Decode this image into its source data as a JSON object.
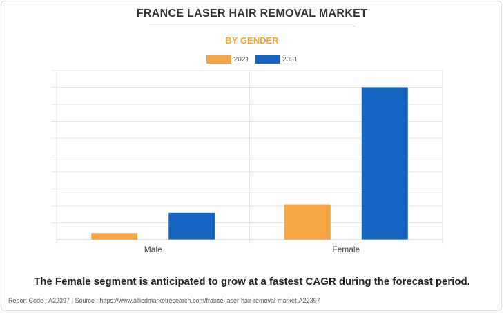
{
  "title": "FRANCE LASER HAIR REMOVAL MARKET",
  "subtitle": "BY GENDER",
  "caption": "The Female segment is anticipated to grow at a fastest CAGR during the forecast period.",
  "footer": {
    "report_code": "Report Code : A22397",
    "separator": "|",
    "source": "Source : https://www.alliedmarketresearch.com/france-laser-hair-removal-market-A22397"
  },
  "colors": {
    "series_2021": "#f5a546",
    "series_2031": "#1565c0"
  },
  "chart_data": {
    "type": "bar",
    "title": "FRANCE LASER HAIR REMOVAL MARKET",
    "subtitle": "BY GENDER",
    "categories": [
      "Male",
      "Female"
    ],
    "series": [
      {
        "name": "2021",
        "values": [
          4,
          21
        ]
      },
      {
        "name": "2031",
        "values": [
          16,
          90
        ]
      }
    ],
    "ylim": [
      0,
      100
    ],
    "y_tick_labels_shown": false,
    "grid": true,
    "legend": "top-center"
  }
}
